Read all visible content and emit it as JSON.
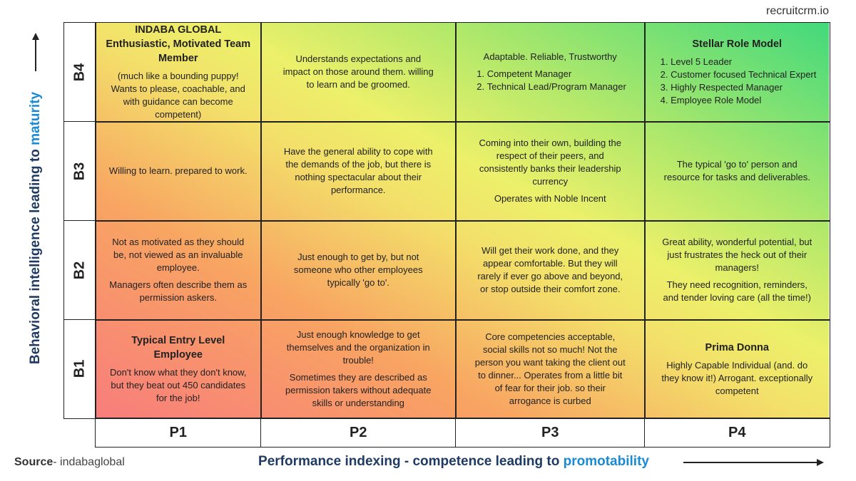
{
  "brand": "recruitcrm.io",
  "y_axis": {
    "text": "Behavioral intelligence leading to ",
    "highlight": "maturity"
  },
  "x_axis": {
    "text": "Performance indexing - competence leading to ",
    "highlight": "promotability"
  },
  "source": {
    "label": "Source",
    "text": "- indabaglobal"
  },
  "columns": [
    "P1",
    "P2",
    "P3",
    "P4"
  ],
  "rows": [
    {
      "label": "B4",
      "cells": [
        {
          "title": "INDABA GLOBAL Enthusiastic, Motivated Team Member",
          "text": [
            "(much like a bounding puppy! Wants to please, coachable, and with guidance can become competent)"
          ]
        },
        {
          "text": [
            "Understands expectations and impact on those around them. willing to learn and be groomed."
          ]
        },
        {
          "text": [
            "Adaptable. Reliable, Trustworthy"
          ],
          "items": [
            "Competent Manager",
            "Technical Lead/Program Manager"
          ]
        },
        {
          "title": "Stellar Role Model",
          "items": [
            "Level 5 Leader",
            "Customer focused Technical Expert",
            "Highly Respected Manager",
            "Employee Role Model"
          ]
        }
      ]
    },
    {
      "label": "B3",
      "cells": [
        {
          "text": [
            "Willing to learn. prepared to work."
          ]
        },
        {
          "text": [
            "Have the general ability to cope with the demands of the job, but there is nothing spectacular about their performance."
          ]
        },
        {
          "text": [
            "Coming into their own, building the respect of their peers, and consistently banks their leadership currency",
            "Operates with Noble Incent"
          ]
        },
        {
          "text": [
            "The typical 'go to' person and resource for tasks and deliverables."
          ]
        }
      ]
    },
    {
      "label": "B2",
      "cells": [
        {
          "text": [
            "Not as motivated as they should be, not viewed as an invaluable employee.",
            "Managers often describe them as permission askers."
          ]
        },
        {
          "text": [
            "Just enough to get by, but not someone who other employees typically 'go to'."
          ]
        },
        {
          "text": [
            "Will get their work done, and they appear comfortable. But they will rarely if ever go above and beyond, or stop outside their comfort zone."
          ]
        },
        {
          "text": [
            "Great ability, wonderful potential, but just frustrates the heck out of their managers!",
            "They need recognition, reminders, and tender loving care (all the time!)"
          ]
        }
      ]
    },
    {
      "label": "B1",
      "cells": [
        {
          "title": "Typical Entry Level Employee",
          "text": [
            "Don't know what they don't know, but they beat out 450 candidates for the job!"
          ]
        },
        {
          "text": [
            "Just enough knowledge to get themselves and the organization in trouble!",
            "Sometimes they are described as permission takers without adequate skills or understanding"
          ]
        },
        {
          "text": [
            "Core competencies acceptable, social skills not so much! Not the person you want taking the client out to dinner... Operates from a little bit of fear for their job. so their arrogance is curbed"
          ]
        },
        {
          "title": "Prima Donna",
          "text": [
            "Highly Capable Individual (and. do they know it!) Arrogant. exceptionally competent"
          ]
        }
      ]
    }
  ]
}
